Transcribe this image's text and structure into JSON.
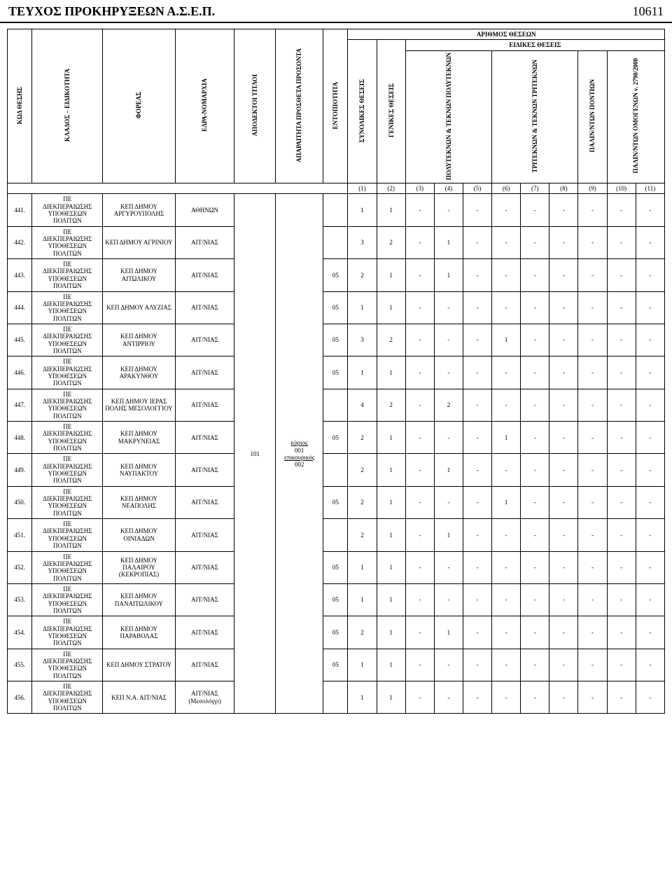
{
  "page": {
    "title": "ΤΕΥΧΟΣ ΠΡΟΚΗΡΥΞΕΩΝ Α.Σ.Ε.Π.",
    "number": "10611"
  },
  "headers": {
    "kod_thesis": "ΚΩΔ ΘΕΣΗΣ",
    "klados": "ΚΛΑΔΟΣ – ΕΙΔΙΚΟΤΗΤΑ",
    "foreas": "ΦΟΡΕΑΣ",
    "edra": "ΕΔΡΑ-ΝΟΜΑΡΧΙΑ",
    "apodektoi": "ΑΠΟΔΕΚΤΟΙ ΤΙΤΛΟΙ",
    "aparaitita": "ΑΠΑΡΑΙΤΗΤΑ ΠΡΟΣΘΕΤΑ ΠΡΟΣΟΝΤΑ",
    "entopiotita": "ΕΝΤΟΠΙΟΤΗΤΑ",
    "arithmos": "ΑΡΙΘΜΟΣ ΘΕΣΕΩΝ",
    "eidikes": "ΕΙΔΙΚΕΣ ΘΕΣΕΙΣ",
    "synolikes": "ΣΥΝΟΛΙΚΕΣ ΘΕΣΕΙΣ",
    "genikes": "ΓΕΝΙΚΕΣ ΘΕΣΕΙΣ",
    "polyteknon": "ΠΟΛΥΤΕΚΝΩΝ & ΤΕΚΝΩΝ ΠΟΛΥΤΕΚΝΩΝ",
    "triteknon": "ΤΡΙΤΕΚΝΩΝ & ΤΕΚΝΩΝ ΤΡΙΤΕΚΝΩΝ",
    "palin_pontion": "ΠΑΛΙΝ/ΝΤΩΝ ΠΟΝΤΙΩΝ",
    "palin_omog": "ΠΑΛΙΝ/ΝΤΩΝ ΟΜΟΓΕΝΩΝ ν. 2790/2000"
  },
  "index_labels": [
    "(1)",
    "(2)",
    "(3)",
    "(4)",
    "(5)",
    "(6)",
    "(7)",
    "(8)",
    "(9)",
    "(10)",
    "(11)"
  ],
  "klados_text": "ΠΕ\nΔΙΕΚΠΕΡΑΙΩΣΗΣ\nΥΠΟΘΕΣΕΩΝ\nΠΟΛΙΤΩΝ",
  "titloi": {
    "code": "101",
    "kyrios_label": "κύριος",
    "kyrios_code": "001",
    "epik_label": "επικουρικός",
    "epik_code": "002"
  },
  "rows": [
    {
      "no": "441.",
      "foreas": "ΚΕΠ ΔΗΜΟΥ ΑΡΓΥΡΟΥΠΟΛΗΣ",
      "edra": "ΑΘΗΝΩΝ",
      "ent": "",
      "v": [
        "1",
        "1",
        "-",
        "-",
        "-",
        "-",
        "-",
        "-",
        "-",
        "-",
        "-"
      ]
    },
    {
      "no": "442.",
      "foreas": "ΚΕΠ ΔΗΜΟΥ ΑΓΡΙΝΙΟΥ",
      "edra": "ΑΙΤ/ΝΙΑΣ",
      "ent": "",
      "v": [
        "3",
        "2",
        "-",
        "1",
        "-",
        "-",
        "-",
        "-",
        "-",
        "-",
        "-"
      ]
    },
    {
      "no": "443.",
      "foreas": "ΚΕΠ ΔΗΜΟΥ ΑΙΤΩΛΙΚΟΥ",
      "edra": "ΑΙΤ/ΝΙΑΣ",
      "ent": "05",
      "v": [
        "2",
        "1",
        "-",
        "1",
        "-",
        "-",
        "-",
        "-",
        "-",
        "-",
        "-"
      ]
    },
    {
      "no": "444.",
      "foreas": "ΚΕΠ ΔΗΜΟΥ ΑΛΥΖΙΑΣ",
      "edra": "ΑΙΤ/ΝΙΑΣ",
      "ent": "05",
      "v": [
        "1",
        "1",
        "-",
        "-",
        "-",
        "-",
        "-",
        "-",
        "-",
        "-",
        "-"
      ]
    },
    {
      "no": "445.",
      "foreas": "ΚΕΠ ΔΗΜΟΥ ΑΝΤΙΡΡΙΟΥ",
      "edra": "ΑΙΤ/ΝΙΑΣ",
      "ent": "05",
      "v": [
        "3",
        "2",
        "-",
        "-",
        "-",
        "1",
        "-",
        "-",
        "-",
        "-",
        "-"
      ]
    },
    {
      "no": "446.",
      "foreas": "ΚΕΠ ΔΗΜΟΥ ΑΡΑΚΥΝΘΟΥ",
      "edra": "ΑΙΤ/ΝΙΑΣ",
      "ent": "05",
      "v": [
        "1",
        "1",
        "-",
        "-",
        "-",
        "-",
        "-",
        "-",
        "-",
        "-",
        "-"
      ]
    },
    {
      "no": "447.",
      "foreas": "ΚΕΠ ΔΗΜΟΥ ΙΕΡΑΣ ΠΟΛΗΣ ΜΕΣΟΛΟΓΓΙΟΥ",
      "edra": "ΑΙΤ/ΝΙΑΣ",
      "ent": "",
      "v": [
        "4",
        "2",
        "-",
        "2",
        "-",
        "-",
        "-",
        "-",
        "-",
        "-",
        "-"
      ]
    },
    {
      "no": "448.",
      "foreas": "ΚΕΠ ΔΗΜΟΥ ΜΑΚΡΥΝΕΙΑΣ",
      "edra": "ΑΙΤ/ΝΙΑΣ",
      "ent": "05",
      "v": [
        "2",
        "1",
        "-",
        "-",
        "-",
        "1",
        "-",
        "-",
        "-",
        "-",
        "-"
      ]
    },
    {
      "no": "449.",
      "foreas": "ΚΕΠ ΔΗΜΟΥ ΝΑΥΠΑΚΤΟΥ",
      "edra": "ΑΙΤ/ΝΙΑΣ",
      "ent": "",
      "v": [
        "2",
        "1",
        "-",
        "1",
        "-",
        "-",
        "-",
        "-",
        "-",
        "-",
        "-"
      ]
    },
    {
      "no": "450.",
      "foreas": "ΚΕΠ ΔΗΜΟΥ ΝΕΑΠΟΛΗΣ",
      "edra": "ΑΙΤ/ΝΙΑΣ",
      "ent": "05",
      "v": [
        "2",
        "1",
        "-",
        "-",
        "-",
        "1",
        "-",
        "-",
        "-",
        "-",
        "-"
      ]
    },
    {
      "no": "451.",
      "foreas": "ΚΕΠ ΔΗΜΟΥ ΟΙΝΙΑΔΩΝ",
      "edra": "ΑΙΤ/ΝΙΑΣ",
      "ent": "",
      "v": [
        "2",
        "1",
        "-",
        "1",
        "-",
        "-",
        "-",
        "-",
        "-",
        "-",
        "-"
      ]
    },
    {
      "no": "452.",
      "foreas": "ΚΕΠ ΔΗΜΟΥ ΠΑΛΑΙΡΟΥ (ΚΕΚΡΟΠΙΑΣ)",
      "edra": "ΑΙΤ/ΝΙΑΣ",
      "ent": "05",
      "v": [
        "1",
        "1",
        "-",
        "-",
        "-",
        "-",
        "-",
        "-",
        "-",
        "-",
        "-"
      ]
    },
    {
      "no": "453.",
      "foreas": "ΚΕΠ ΔΗΜΟΥ ΠΑΝΑΙΤΩΛΙΚΟΥ",
      "edra": "ΑΙΤ/ΝΙΑΣ",
      "ent": "05",
      "v": [
        "1",
        "1",
        "-",
        "-",
        "-",
        "-",
        "-",
        "-",
        "-",
        "-",
        "-"
      ]
    },
    {
      "no": "454.",
      "foreas": "ΚΕΠ ΔΗΜΟΥ ΠΑΡΑΒΟΛΑΣ",
      "edra": "ΑΙΤ/ΝΙΑΣ",
      "ent": "05",
      "v": [
        "2",
        "1",
        "-",
        "1",
        "-",
        "-",
        "-",
        "-",
        "-",
        "-",
        "-"
      ]
    },
    {
      "no": "455.",
      "foreas": "ΚΕΠ ΔΗΜΟΥ ΣΤΡΑΤΟΥ",
      "edra": "ΑΙΤ/ΝΙΑΣ",
      "ent": "05",
      "v": [
        "1",
        "1",
        "-",
        "-",
        "-",
        "-",
        "-",
        "-",
        "-",
        "-",
        "-"
      ]
    },
    {
      "no": "456.",
      "foreas": "ΚΕΠ Ν.Α. ΑΙΤ/ΝΙΑΣ",
      "edra": "ΑΙΤ/ΝΙΑΣ (Μεσολόγγι)",
      "ent": "",
      "v": [
        "1",
        "1",
        "-",
        "-",
        "-",
        "-",
        "-",
        "-",
        "-",
        "-",
        "-"
      ]
    }
  ],
  "colors": {
    "bg": "#ffffff",
    "text": "#000000",
    "border": "#000000"
  },
  "col_widths": {
    "no": 30,
    "klados": 86,
    "foreas": 88,
    "edra": 72,
    "titloi": 50,
    "prosonta": 58,
    "ent": 30,
    "num": 35
  }
}
